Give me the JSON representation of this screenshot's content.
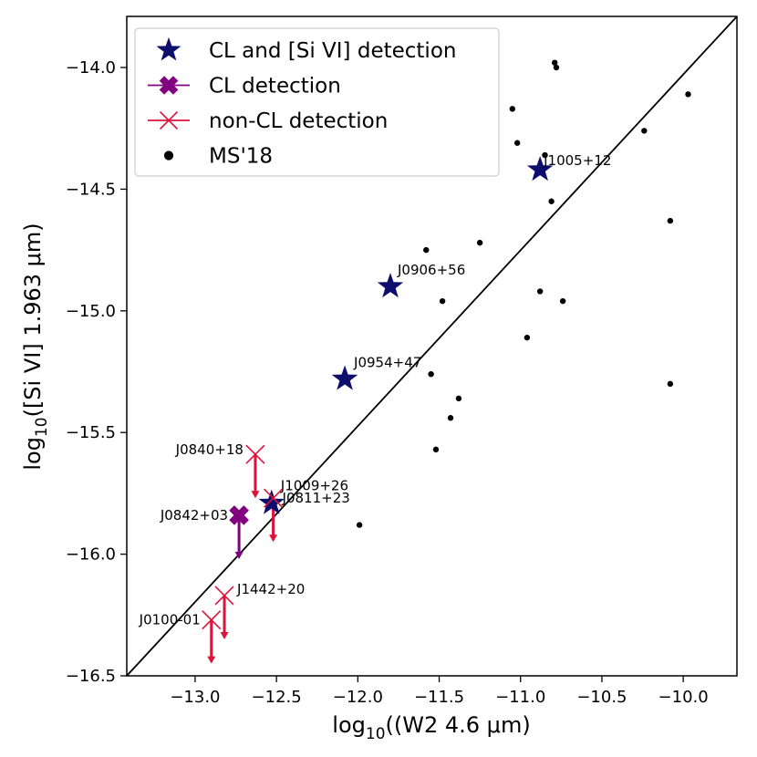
{
  "chart_data": {
    "type": "scatter",
    "xlabel_prefix": "log",
    "xlabel_sub": "10",
    "xlabel_rest": "((W2 4.6 μm)",
    "ylabel_prefix": "log",
    "ylabel_sub": "10",
    "ylabel_rest": "([Si VI] 1.963 μm)",
    "xlim": [
      -13.42,
      -9.67
    ],
    "ylim": [
      -16.5,
      -13.79
    ],
    "xticks": [
      -13.0,
      -12.5,
      -12.0,
      -11.5,
      -11.0,
      -10.5,
      -10.0
    ],
    "xtick_labels": [
      "−13.0",
      "−12.5",
      "−12.0",
      "−11.5",
      "−11.0",
      "−10.5",
      "−10.0"
    ],
    "yticks": [
      -16.5,
      -16.0,
      -15.5,
      -15.0,
      -14.5,
      -14.0
    ],
    "ytick_labels": [
      "−16.5",
      "−16.0",
      "−15.5",
      "−15.0",
      "−14.5",
      "−14.0"
    ],
    "fit_line": {
      "x": [
        -13.42,
        -9.67
      ],
      "y": [
        -16.5,
        -13.79
      ],
      "color": "#000000"
    },
    "legend": {
      "position": "upper-left",
      "entries": [
        {
          "label": "CL and [Si VI] detection",
          "marker": "star",
          "color": "#0d0d6e"
        },
        {
          "label": "CL detection",
          "marker": "filled-x",
          "color": "#800080"
        },
        {
          "label": "non-CL detection",
          "marker": "x",
          "color": "#dc143c"
        },
        {
          "label": "MS'18",
          "marker": "dot",
          "color": "#000000"
        }
      ]
    },
    "series": [
      {
        "name": "CL and [Si VI] detection",
        "marker": "star",
        "color": "#0d0d6e",
        "points": [
          {
            "x": -10.88,
            "y": -14.42,
            "label": "J1005+12"
          },
          {
            "x": -11.8,
            "y": -14.9,
            "label": "J0906+56"
          },
          {
            "x": -12.08,
            "y": -15.28,
            "label": "J0954+47"
          },
          {
            "x": -12.53,
            "y": -15.79,
            "label": "J1009+26"
          }
        ]
      },
      {
        "name": "CL detection",
        "marker": "filled-x",
        "color": "#800080",
        "points": [
          {
            "x": -12.73,
            "y": -15.84,
            "label": "J0842+03",
            "upper_limit_to": -16.02
          }
        ]
      },
      {
        "name": "non-CL detection",
        "marker": "x",
        "color": "#dc143c",
        "points": [
          {
            "x": -12.63,
            "y": -15.59,
            "label": "J0840+18",
            "upper_limit_to": -15.77
          },
          {
            "x": -12.52,
            "y": -15.77,
            "label": "J0811+23",
            "upper_limit_to": -15.95
          },
          {
            "x": -12.82,
            "y": -16.17,
            "label": "J1442+20",
            "upper_limit_to": -16.35
          },
          {
            "x": -12.9,
            "y": -16.27,
            "label": "J0100-01",
            "upper_limit_to": -16.45
          }
        ]
      },
      {
        "name": "MS'18",
        "marker": "dot",
        "color": "#000000",
        "points": [
          {
            "x": -10.79,
            "y": -13.98
          },
          {
            "x": -10.78,
            "y": -14.0
          },
          {
            "x": -9.97,
            "y": -14.11
          },
          {
            "x": -11.05,
            "y": -14.17
          },
          {
            "x": -11.02,
            "y": -14.31
          },
          {
            "x": -10.24,
            "y": -14.26
          },
          {
            "x": -10.85,
            "y": -14.36
          },
          {
            "x": -10.81,
            "y": -14.55
          },
          {
            "x": -10.08,
            "y": -14.63
          },
          {
            "x": -11.25,
            "y": -14.72
          },
          {
            "x": -11.58,
            "y": -14.75
          },
          {
            "x": -10.88,
            "y": -14.92
          },
          {
            "x": -10.74,
            "y": -14.96
          },
          {
            "x": -11.48,
            "y": -14.96
          },
          {
            "x": -10.96,
            "y": -15.11
          },
          {
            "x": -11.55,
            "y": -15.26
          },
          {
            "x": -10.08,
            "y": -15.3
          },
          {
            "x": -11.38,
            "y": -15.36
          },
          {
            "x": -11.43,
            "y": -15.44
          },
          {
            "x": -11.52,
            "y": -15.57
          },
          {
            "x": -11.99,
            "y": -15.88
          }
        ]
      }
    ]
  }
}
